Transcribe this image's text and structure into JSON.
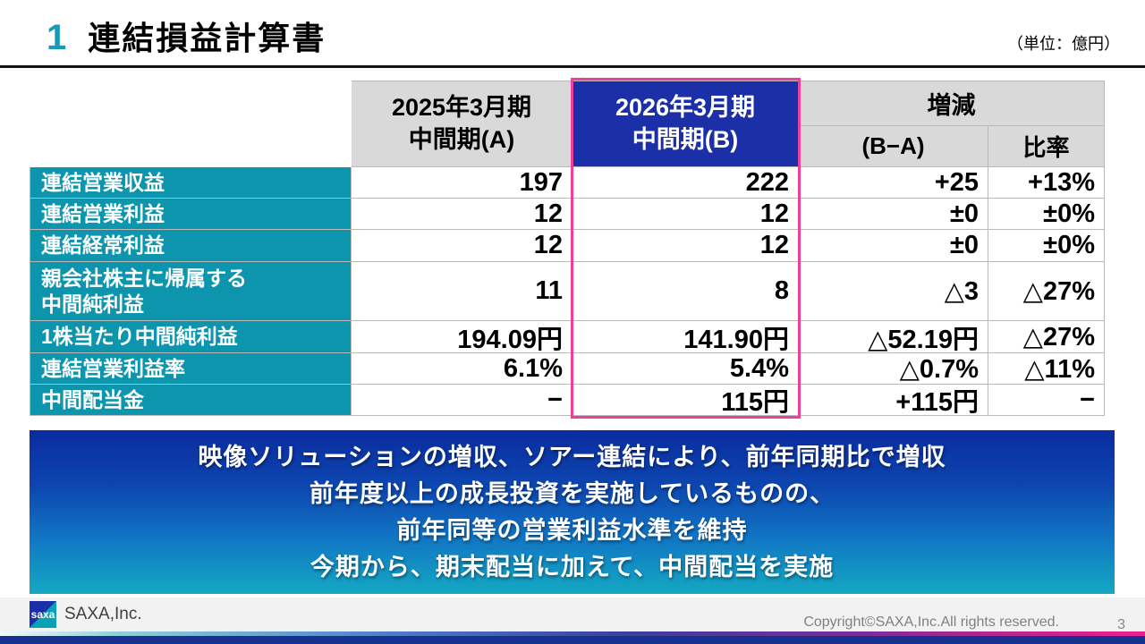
{
  "header": {
    "number": "1",
    "title": "連結損益計算書",
    "unit_label": "（単位：億円）"
  },
  "table": {
    "col_headers": {
      "col_a": "2025年3月期\n中間期(A)",
      "col_b": "2026年3月期\n中間期(B)",
      "change_group": "増減",
      "change_diff": "(B−A)",
      "change_ratio": "比率"
    },
    "rows": [
      {
        "label_lines": [
          "連結営業収益"
        ],
        "a": "197",
        "b": "222",
        "diff": "+25",
        "ratio": "+13%"
      },
      {
        "label_lines": [
          "連結営業利益"
        ],
        "a": "12",
        "b": "12",
        "diff": "±0",
        "ratio": "±0%"
      },
      {
        "label_lines": [
          "連結経常利益"
        ],
        "a": "12",
        "b": "12",
        "diff": "±0",
        "ratio": "±0%"
      },
      {
        "label_lines": [
          "親会社株主に帰属する",
          "中間純利益"
        ],
        "a": "11",
        "b": "8",
        "diff": "△3",
        "ratio": "△27%"
      },
      {
        "label_lines": [
          "1株当たり中間純利益"
        ],
        "a": "194.09円",
        "b": "141.90円",
        "diff": "△52.19円",
        "ratio": "△27%"
      },
      {
        "label_lines": [
          "連結営業利益率"
        ],
        "a": "6.1%",
        "b": "5.4%",
        "diff": "△0.7%",
        "ratio": "△11%"
      },
      {
        "label_lines": [
          "中間配当金"
        ],
        "a": "−",
        "b": "115円",
        "diff": "+115円",
        "ratio": "−"
      }
    ]
  },
  "summary": {
    "lines": [
      "映像ソリューションの増収、ソアー連結により、前年同期比で増収",
      "前年度以上の成長投資を実施しているものの、",
      "前年同等の営業利益水準を維持",
      "今期から、期末配当に加えて、中間配当を実施"
    ]
  },
  "footer": {
    "logo_text": "saxa",
    "company": "SAXA,Inc.",
    "copyright": "Copyright©SAXA,Inc.All rights reserved.",
    "page_number": "3"
  },
  "colors": {
    "accent_teal": "#0d95ad",
    "header_gray": "#d9d9d9",
    "highlight_blue": "#1b2fa8",
    "highlight_border_pink": "#ee3f9a",
    "summary_gradient_top": "#0a2b9f",
    "summary_gradient_bottom": "#14a9c2",
    "bottom_bar_navy": "#16318f"
  }
}
